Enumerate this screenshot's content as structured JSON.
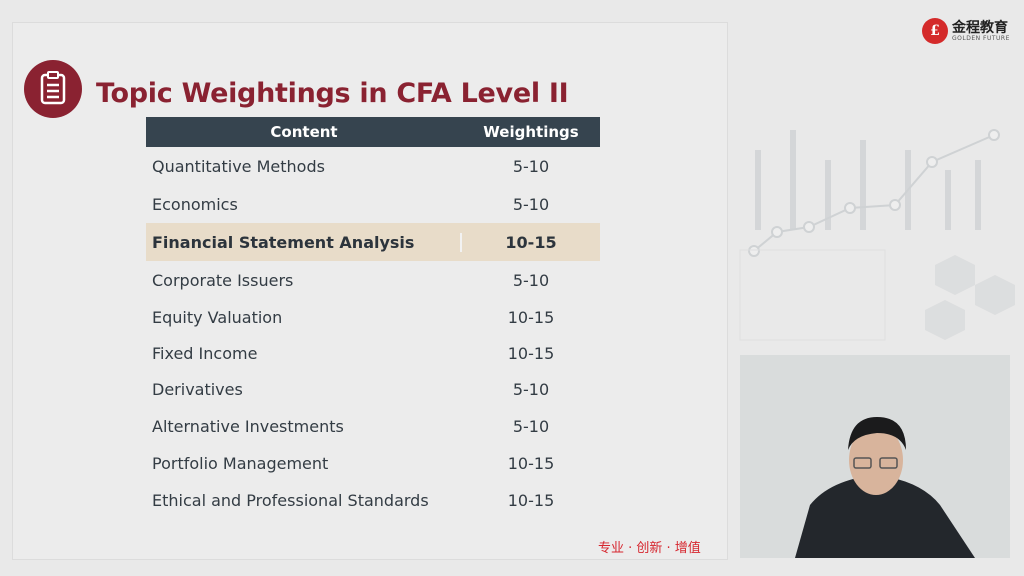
{
  "slide": {
    "title": "Topic Weightings in CFA Level II",
    "icon": "clipboard-icon",
    "table": {
      "headers": [
        "Content",
        "Weightings"
      ],
      "rows": [
        {
          "topic": "Quantitative Methods",
          "weight": "5-10"
        },
        {
          "topic": "Economics",
          "weight": "5-10"
        },
        {
          "topic": "Financial Statement Analysis",
          "weight": "10-15",
          "highlighted": true
        },
        {
          "topic": "Corporate Issuers",
          "weight": "5-10"
        },
        {
          "topic": "Equity Valuation",
          "weight": "10-15"
        },
        {
          "topic": "Fixed Income",
          "weight": "10-15"
        },
        {
          "topic": "Derivatives",
          "weight": "5-10"
        },
        {
          "topic": "Alternative Investments",
          "weight": "5-10"
        },
        {
          "topic": "Portfolio Management",
          "weight": "10-15"
        },
        {
          "topic": "Ethical and Professional Standards",
          "weight": "10-15"
        }
      ]
    },
    "footer": "专业 · 创新 · 增值"
  },
  "logo": {
    "cn": "金程教育",
    "en": "GOLDEN FUTURE"
  },
  "colors": {
    "accent": "#8a2231",
    "header": "#36444f",
    "highlight": "#e8dcc9",
    "footer": "#d6262e"
  }
}
